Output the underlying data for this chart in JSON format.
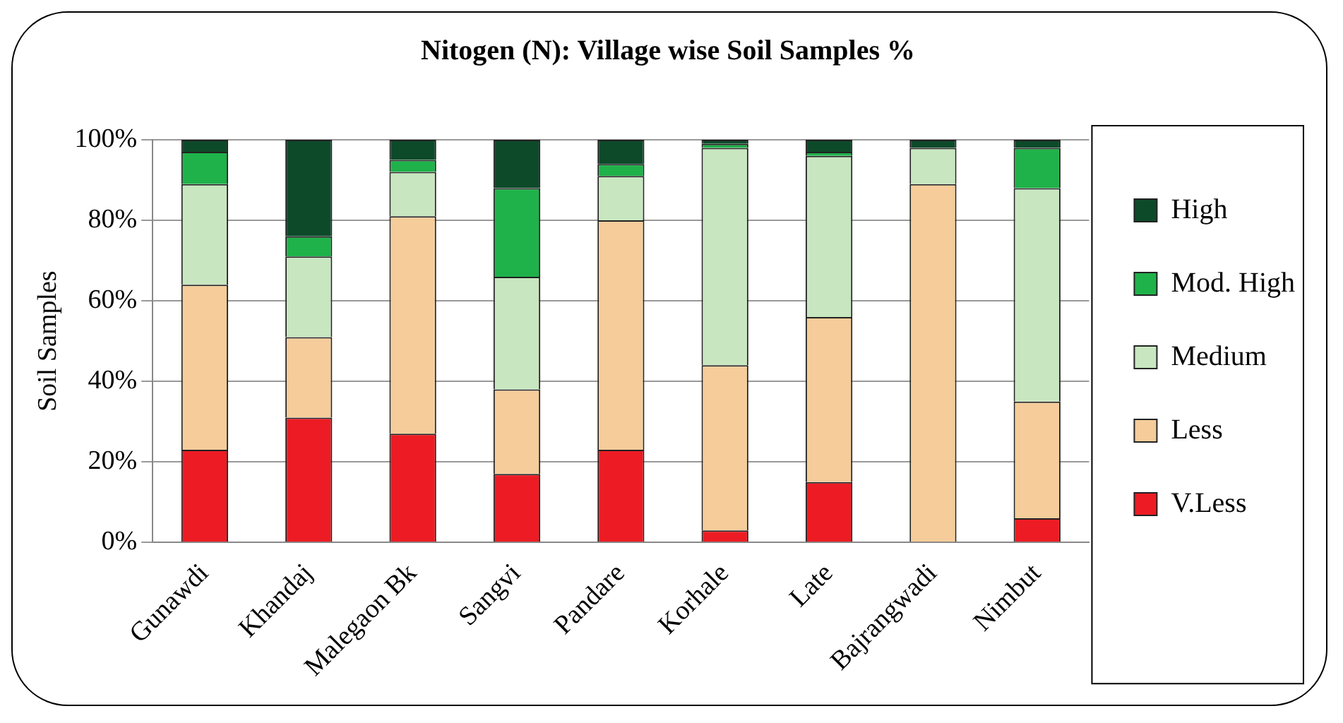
{
  "chart_data": {
    "type": "bar",
    "title": "Nitogen (N): Village wise Soil Samples %",
    "ylabel": "Soil Samples",
    "categories": [
      "Gunawdi",
      "Khandaj",
      "Malegaon Bk",
      "Sangvi",
      "Pandare",
      "Korhale",
      "Late",
      "Bajrangwadi",
      "Nimbut"
    ],
    "stacked": true,
    "ylim": [
      0,
      100
    ],
    "yticks": [
      {
        "value": 0,
        "label": "0%"
      },
      {
        "value": 20,
        "label": "20%"
      },
      {
        "value": 40,
        "label": "40%"
      },
      {
        "value": 60,
        "label": "60%"
      },
      {
        "value": 80,
        "label": "80%"
      },
      {
        "value": 100,
        "label": "100%"
      }
    ],
    "grid": "y",
    "legend": "right",
    "series": [
      {
        "name": "V.Less",
        "color": "#ed1c24",
        "values": [
          23,
          31,
          27,
          17,
          23,
          3,
          15,
          0,
          6
        ]
      },
      {
        "name": "Less",
        "color": "#f5cc9a",
        "values": [
          41,
          20,
          54,
          21,
          57,
          41,
          41,
          89,
          29
        ]
      },
      {
        "name": "Medium",
        "color": "#c8e6c0",
        "values": [
          25,
          20,
          11,
          28,
          11,
          54,
          40,
          9,
          53
        ]
      },
      {
        "name": "Mod. High",
        "color": "#1fb24a",
        "values": [
          8,
          5,
          3,
          22,
          3,
          1,
          1,
          0,
          10
        ]
      },
      {
        "name": "High",
        "color": "#0d4a2a",
        "values": [
          3,
          24,
          5,
          12,
          6,
          1,
          3,
          2,
          2
        ]
      }
    ]
  }
}
